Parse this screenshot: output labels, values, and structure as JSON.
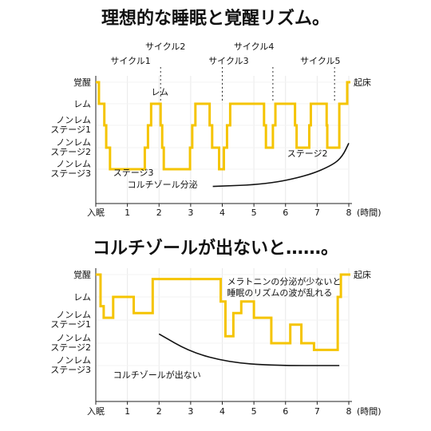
{
  "theme": {
    "line_color": "#f5c400",
    "bg": "#ffffff",
    "grid": "#e9e9e9",
    "text": "#111111"
  },
  "chart_data": [
    {
      "type": "line",
      "title": "理想的な睡眠と覚醒リズム。",
      "xlabel": "(時間)",
      "x_ticks": [
        "入眠",
        "1",
        "2",
        "3",
        "4",
        "5",
        "6",
        "7",
        "8"
      ],
      "xlim": [
        0,
        8
      ],
      "y_levels": [
        {
          "key": "wake",
          "label": "覚醒"
        },
        {
          "key": "rem",
          "label": "レム"
        },
        {
          "key": "n1",
          "label": "ノンレム\nステージ1"
        },
        {
          "key": "n2",
          "label": "ノンレム\nステージ2"
        },
        {
          "key": "n3",
          "label": "ノンレム\nステージ3"
        }
      ],
      "wake_label_end": "起床",
      "cycles": [
        {
          "label": "サイクル1",
          "x": 1.1,
          "row": 1
        },
        {
          "label": "サイクル2",
          "x": 2.2,
          "row": 0
        },
        {
          "label": "サイクル3",
          "x": 4.2,
          "row": 1
        },
        {
          "label": "サイクル4",
          "x": 5.0,
          "row": 0
        },
        {
          "label": "サイクル5",
          "x": 7.1,
          "row": 1
        }
      ],
      "cycle_dividers": [
        2.05,
        4.0,
        5.6,
        7.55
      ],
      "sleep_stage_series": {
        "name": "",
        "points": [
          [
            0,
            0
          ],
          [
            0.1,
            0
          ],
          [
            0.1,
            1
          ],
          [
            0.27,
            1
          ],
          [
            0.27,
            2
          ],
          [
            0.33,
            2
          ],
          [
            0.33,
            3
          ],
          [
            0.45,
            3
          ],
          [
            0.45,
            4
          ],
          [
            1.55,
            4
          ],
          [
            1.55,
            3
          ],
          [
            1.65,
            3
          ],
          [
            1.65,
            2
          ],
          [
            1.75,
            2
          ],
          [
            1.75,
            1
          ],
          [
            2.05,
            1
          ],
          [
            2.05,
            2
          ],
          [
            2.1,
            2
          ],
          [
            2.1,
            3
          ],
          [
            2.15,
            3
          ],
          [
            2.15,
            4
          ],
          [
            2.98,
            4
          ],
          [
            2.98,
            3
          ],
          [
            3.05,
            3
          ],
          [
            3.05,
            2
          ],
          [
            3.15,
            2
          ],
          [
            3.15,
            1
          ],
          [
            3.6,
            1
          ],
          [
            3.6,
            2
          ],
          [
            3.68,
            2
          ],
          [
            3.68,
            3
          ],
          [
            3.9,
            3
          ],
          [
            3.9,
            4
          ],
          [
            4.05,
            4
          ],
          [
            4.05,
            3
          ],
          [
            4.15,
            3
          ],
          [
            4.15,
            2
          ],
          [
            4.25,
            2
          ],
          [
            4.25,
            1
          ],
          [
            5.32,
            1
          ],
          [
            5.32,
            2
          ],
          [
            5.38,
            2
          ],
          [
            5.38,
            3
          ],
          [
            5.6,
            3
          ],
          [
            5.6,
            2
          ],
          [
            5.68,
            2
          ],
          [
            5.68,
            1
          ],
          [
            6.3,
            1
          ],
          [
            6.3,
            2
          ],
          [
            6.35,
            2
          ],
          [
            6.35,
            3
          ],
          [
            6.75,
            3
          ],
          [
            6.75,
            2
          ],
          [
            6.8,
            2
          ],
          [
            6.8,
            1
          ],
          [
            7.3,
            1
          ],
          [
            7.3,
            2
          ],
          [
            7.32,
            2
          ],
          [
            7.32,
            3
          ],
          [
            7.7,
            3
          ],
          [
            7.7,
            1
          ],
          [
            7.95,
            1
          ],
          [
            7.95,
            0
          ],
          [
            8.05,
            0
          ]
        ]
      },
      "annotations": [
        {
          "text": "レム",
          "x": 1.75,
          "level": 0.6
        },
        {
          "text": "ステージ3",
          "x": 0.55,
          "level": 4.3
        },
        {
          "text": "ステージ2",
          "x": 6.05,
          "level": 3.4
        }
      ],
      "cortisol": {
        "label": "コルチゾール分泌",
        "points": [
          [
            3.7,
            4.8
          ],
          [
            5.4,
            4.7
          ],
          [
            6.7,
            4.3
          ],
          [
            7.5,
            3.8
          ],
          [
            7.8,
            3.4
          ],
          [
            8.0,
            2.8
          ]
        ],
        "label_x": 1.0,
        "label_level": 4.85
      }
    },
    {
      "type": "line",
      "title": "コルチゾールが出ないと……。",
      "xlabel": "(時間)",
      "x_ticks": [
        "入眠",
        "1",
        "2",
        "3",
        "4",
        "5",
        "6",
        "7",
        "8"
      ],
      "xlim": [
        0,
        8
      ],
      "y_levels": [
        {
          "key": "wake",
          "label": "覚醒"
        },
        {
          "key": "rem",
          "label": "レム"
        },
        {
          "key": "n1",
          "label": "ノンレム\nステージ1"
        },
        {
          "key": "n2",
          "label": "ノンレム\nステージ2"
        },
        {
          "key": "n3",
          "label": "ノンレム\nステージ3"
        }
      ],
      "wake_label_end": "起床",
      "sleep_stage_series": {
        "name": "",
        "points": [
          [
            0,
            0
          ],
          [
            0.15,
            0
          ],
          [
            0.15,
            1.4
          ],
          [
            0.25,
            1.4
          ],
          [
            0.25,
            1.9
          ],
          [
            0.55,
            1.9
          ],
          [
            0.55,
            1.0
          ],
          [
            1.2,
            1.0
          ],
          [
            1.2,
            1.7
          ],
          [
            1.8,
            1.7
          ],
          [
            1.8,
            0.2
          ],
          [
            3.95,
            0.2
          ],
          [
            3.95,
            1.2
          ],
          [
            4.1,
            1.2
          ],
          [
            4.1,
            2.7
          ],
          [
            4.35,
            2.7
          ],
          [
            4.35,
            1.7
          ],
          [
            4.6,
            1.7
          ],
          [
            4.6,
            1.2
          ],
          [
            5.0,
            1.2
          ],
          [
            5.0,
            1.9
          ],
          [
            5.55,
            1.9
          ],
          [
            5.55,
            3.0
          ],
          [
            6.15,
            3.0
          ],
          [
            6.15,
            2.2
          ],
          [
            6.5,
            2.2
          ],
          [
            6.5,
            3.0
          ],
          [
            6.9,
            3.0
          ],
          [
            6.9,
            3.3
          ],
          [
            7.65,
            3.3
          ],
          [
            7.65,
            1.0
          ],
          [
            7.75,
            1.0
          ],
          [
            7.75,
            0.0
          ],
          [
            8.05,
            0.0
          ]
        ]
      },
      "annotations": [
        {
          "text": "メラトニンの分泌が少ないと",
          "x": 4.15,
          "level": 0.45
        },
        {
          "text": "睡眠のリズムの波が乱れる",
          "x": 4.15,
          "level": 0.95
        }
      ],
      "cortisol": {
        "label": "コルチゾールが出ない",
        "points": [
          [
            2.0,
            2.6
          ],
          [
            3.0,
            3.4
          ],
          [
            4.2,
            3.85
          ],
          [
            5.6,
            4.0
          ],
          [
            7.7,
            4.0
          ]
        ],
        "label_x": 0.55,
        "label_level": 4.55
      }
    }
  ]
}
